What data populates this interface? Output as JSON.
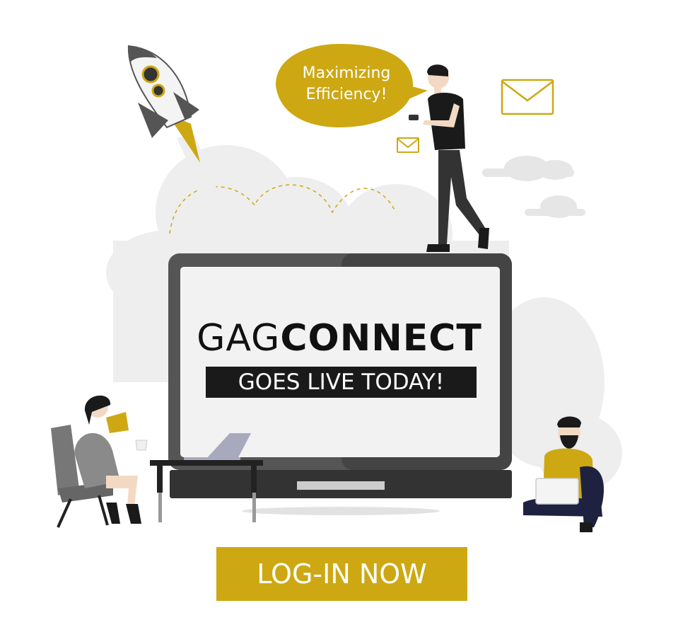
{
  "brand": {
    "light": "GAG",
    "bold": "CONNECT"
  },
  "tagline": "GOES LIVE TODAY!",
  "speech_bubble": {
    "line1": "Maximizing",
    "line2": "Efficiency!"
  },
  "cta": {
    "label": "LOG-IN NOW"
  },
  "colors": {
    "accent": "#cda812",
    "dark": "#1a1a1a",
    "screen": "#f2f2f2",
    "laptop": "#555555",
    "clouds": "#ededed"
  },
  "icons": [
    "rocket-icon",
    "envelope-icon",
    "cloud-icon",
    "laptop-icon"
  ]
}
